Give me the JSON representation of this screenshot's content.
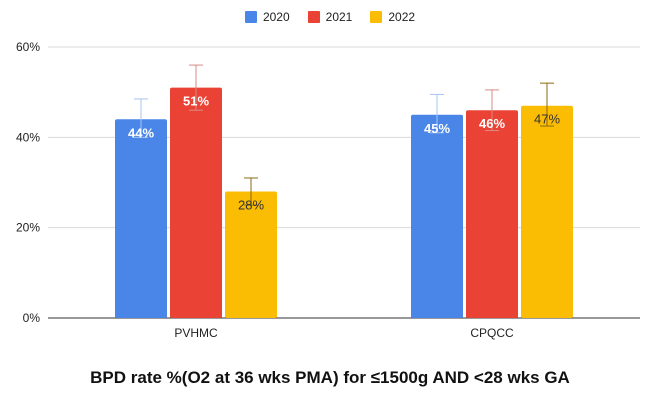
{
  "chart_data": {
    "type": "bar",
    "title": "BPD rate %(O2 at 36 wks PMA) for ≤1500g AND <28 wks GA",
    "xlabel": "",
    "ylabel": "",
    "categories": [
      "PVHMC",
      "CPQCC"
    ],
    "series": [
      {
        "name": "2020",
        "color": "#4a86e8",
        "values": [
          44,
          45
        ],
        "labels": [
          "44%",
          "45%"
        ],
        "err_upper": [
          48.5,
          49.5
        ],
        "err_lower": [
          40,
          41
        ],
        "label_color": "#ffffff",
        "err_color": "#a8c4f0"
      },
      {
        "name": "2021",
        "color": "#ea4335",
        "values": [
          51,
          46
        ],
        "labels": [
          "51%",
          "46%"
        ],
        "err_upper": [
          56,
          50.5
        ],
        "err_lower": [
          46,
          41.5
        ],
        "label_color": "#ffffff",
        "err_color": "#d98a84"
      },
      {
        "name": "2022",
        "color": "#fbbc04",
        "values": [
          28,
          47
        ],
        "labels": [
          "28%",
          "47%"
        ],
        "err_upper": [
          31,
          52
        ],
        "err_lower": [
          25,
          42.5
        ],
        "label_color": "#333333",
        "err_color": "#8a6a10"
      }
    ],
    "yticks": [
      "0%",
      "20%",
      "40%",
      "60%"
    ],
    "ytick_values": [
      0,
      20,
      40,
      60
    ],
    "ylim": [
      0,
      60
    ],
    "grid": true,
    "legend_position": "top"
  }
}
